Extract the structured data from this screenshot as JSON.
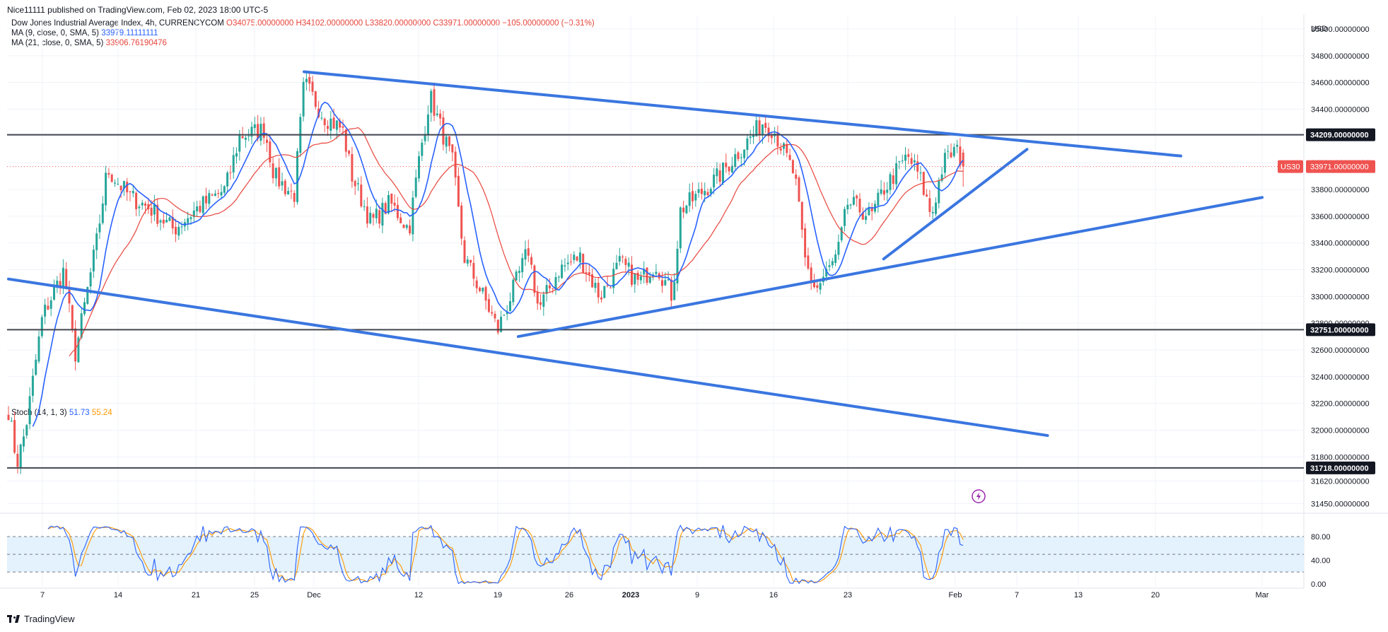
{
  "header": {
    "publish_line": "Nice11111 published on TradingView.com, Feb 02, 2023 18:00 UTC-5",
    "symbol_line": "Dow Jones Industrial Average Index, 4h, CURRENCYCOM",
    "open": "O34075.00000000",
    "high": "H34102.00000000",
    "low": "L33820.00000000",
    "close": "C33971.00000000",
    "change": "−105.00000000 (−0.31%)",
    "ma9_label": "MA (9, close, 0, SMA, 5)",
    "ma9_value": "33979.11111111",
    "ma21_label": "MA (21, close, 0, SMA, 5)",
    "ma21_value": "33906.76190476",
    "stoch_label": "Stoch (14, 1, 3)",
    "stoch_k": "51.73",
    "stoch_d": "55.24"
  },
  "footer": {
    "brand": "TradingView"
  },
  "colors": {
    "up": "#26a69a",
    "down": "#ef5350",
    "ma9": "#2962ff",
    "ma21": "#e8453c",
    "trendline": "#3a76e0",
    "level": "#434651",
    "stoch_k": "#2962ff",
    "stoch_d": "#ff9800",
    "stoch_band": "#e3f2fd"
  },
  "chart_data": [
    {
      "type": "candlestick",
      "title": "Dow Jones Industrial Average Index, 4h, CURRENCYCOM",
      "currency": "USD",
      "ylim": [
        31400,
        35100
      ],
      "y_ticks": [
        31450,
        31620,
        31800,
        32000,
        32200,
        32400,
        32600,
        32800,
        33000,
        33200,
        33400,
        33600,
        33800,
        34000,
        34200,
        34400,
        34600,
        34800,
        35000
      ],
      "y_tick_labels": [
        "31450.00000000",
        "31620.00000000",
        "31800.00000000",
        "32000.00000000",
        "32200.00000000",
        "32400.00000000",
        "32600.00000000",
        "32800.00000000",
        "33000.00000000",
        "33200.00000000",
        "33400.00000000",
        "33600.00000000",
        "33800.00000000",
        "34000.00000000",
        "34200.00000000",
        "34400.00000000",
        "34600.00000000",
        "34800.00000000",
        "35000.00000000"
      ],
      "x_labels": [
        {
          "date": "2022-11-07",
          "label": "7"
        },
        {
          "date": "2022-11-14",
          "label": "14"
        },
        {
          "date": "2022-11-21",
          "label": "21"
        },
        {
          "date": "2022-11-25",
          "label": "25"
        },
        {
          "date": "2022-12-01",
          "label": "Dec"
        },
        {
          "date": "2022-12-12",
          "label": "12"
        },
        {
          "date": "2022-12-19",
          "label": "19"
        },
        {
          "date": "2022-12-26",
          "label": "26"
        },
        {
          "date": "2023-01-01",
          "label": "2023"
        },
        {
          "date": "2023-01-09",
          "label": "9"
        },
        {
          "date": "2023-01-16",
          "label": "16"
        },
        {
          "date": "2023-01-23",
          "label": "23"
        },
        {
          "date": "2023-02-01",
          "label": "Feb"
        },
        {
          "date": "2023-02-07",
          "label": "7"
        },
        {
          "date": "2023-02-13",
          "label": "13"
        },
        {
          "date": "2023-02-20",
          "label": "20"
        },
        {
          "date": "2023-03-01",
          "label": "Mar"
        }
      ],
      "last_price": {
        "symbol": "US30",
        "value": 33971,
        "label": "33971.00000000"
      },
      "horizontal_levels": [
        {
          "value": 34209,
          "label": "34209.00000000"
        },
        {
          "value": 32751,
          "label": "32751.00000000"
        },
        {
          "value": 31718,
          "label": "31718.00000000"
        }
      ],
      "trendlines": [
        {
          "name": "upper-channel",
          "from": [
            "2022-11-30",
            34680
          ],
          "to": [
            "2023-02-24",
            34050
          ]
        },
        {
          "name": "lower-channel",
          "from": [
            "2022-11-03",
            33130
          ],
          "to": [
            "2023-02-10",
            31960
          ]
        },
        {
          "name": "rising-support",
          "from": [
            "2022-12-21",
            32700
          ],
          "to": [
            "2023-03-01",
            33740
          ]
        },
        {
          "name": "wedge-support",
          "from": [
            "2023-01-26",
            33280
          ],
          "to": [
            "2023-02-08",
            34100
          ]
        }
      ],
      "series": [
        {
          "name": "MA (9, close, 0, SMA, 5)",
          "value": 33979.11111111
        },
        {
          "name": "MA (21, close, 0, SMA, 5)",
          "value": 33906.76190476
        }
      ],
      "path_points": [
        [
          "2022-11-03",
          32150
        ],
        [
          "2022-11-04",
          31750
        ],
        [
          "2022-11-05",
          32000
        ],
        [
          "2022-11-07",
          32850
        ],
        [
          "2022-11-09",
          33200
        ],
        [
          "2022-11-10",
          32550
        ],
        [
          "2022-11-12",
          33400
        ],
        [
          "2022-11-13",
          33950
        ],
        [
          "2022-11-15",
          33750
        ],
        [
          "2022-11-17",
          33650
        ],
        [
          "2022-11-19",
          33500
        ],
        [
          "2022-11-21",
          33650
        ],
        [
          "2022-11-23",
          33800
        ],
        [
          "2022-11-24",
          34200
        ],
        [
          "2022-11-26",
          34250
        ],
        [
          "2022-11-27",
          33900
        ],
        [
          "2022-11-29",
          33750
        ],
        [
          "2022-11-30",
          34600
        ],
        [
          "2022-12-02",
          34350
        ],
        [
          "2022-12-04",
          34250
        ],
        [
          "2022-12-05",
          33900
        ],
        [
          "2022-12-07",
          33550
        ],
        [
          "2022-12-09",
          33700
        ],
        [
          "2022-12-11",
          33500
        ],
        [
          "2022-12-12",
          34000
        ],
        [
          "2022-12-13",
          34500
        ],
        [
          "2022-12-15",
          34000
        ],
        [
          "2022-12-16",
          33300
        ],
        [
          "2022-12-18",
          32950
        ],
        [
          "2022-12-19",
          32750
        ],
        [
          "2022-12-20",
          32950
        ],
        [
          "2022-12-22",
          33350
        ],
        [
          "2022-12-23",
          32900
        ],
        [
          "2022-12-25",
          33200
        ],
        [
          "2022-12-27",
          33300
        ],
        [
          "2022-12-29",
          33000
        ],
        [
          "2022-12-31",
          33250
        ],
        [
          "2023-01-02",
          33100
        ],
        [
          "2023-01-04",
          33250
        ],
        [
          "2023-01-06",
          33000
        ],
        [
          "2023-01-07",
          33650
        ],
        [
          "2023-01-09",
          33750
        ],
        [
          "2023-01-11",
          33900
        ],
        [
          "2023-01-13",
          34100
        ],
        [
          "2023-01-15",
          34300
        ],
        [
          "2023-01-16",
          34250
        ],
        [
          "2023-01-18",
          33900
        ],
        [
          "2023-01-19",
          33250
        ],
        [
          "2023-01-20",
          33050
        ],
        [
          "2023-01-22",
          33300
        ],
        [
          "2023-01-23",
          33700
        ],
        [
          "2023-01-25",
          33600
        ],
        [
          "2023-01-26",
          33800
        ],
        [
          "2023-01-28",
          34050
        ],
        [
          "2023-01-29",
          33900
        ],
        [
          "2023-01-30",
          33600
        ],
        [
          "2023-01-31",
          34000
        ],
        [
          "2023-02-01",
          34100
        ],
        [
          "2023-02-02",
          33971
        ]
      ]
    },
    {
      "type": "line",
      "title": "Stoch (14, 1, 3)",
      "ylim": [
        -5,
        110
      ],
      "y_ticks": [
        0,
        40,
        80
      ],
      "y_tick_labels": [
        "0.00",
        "40.00",
        "80.00"
      ],
      "band": [
        20,
        80
      ],
      "series": [
        {
          "name": "%K",
          "value": 51.73
        },
        {
          "name": "%D",
          "value": 55.24
        }
      ]
    }
  ]
}
